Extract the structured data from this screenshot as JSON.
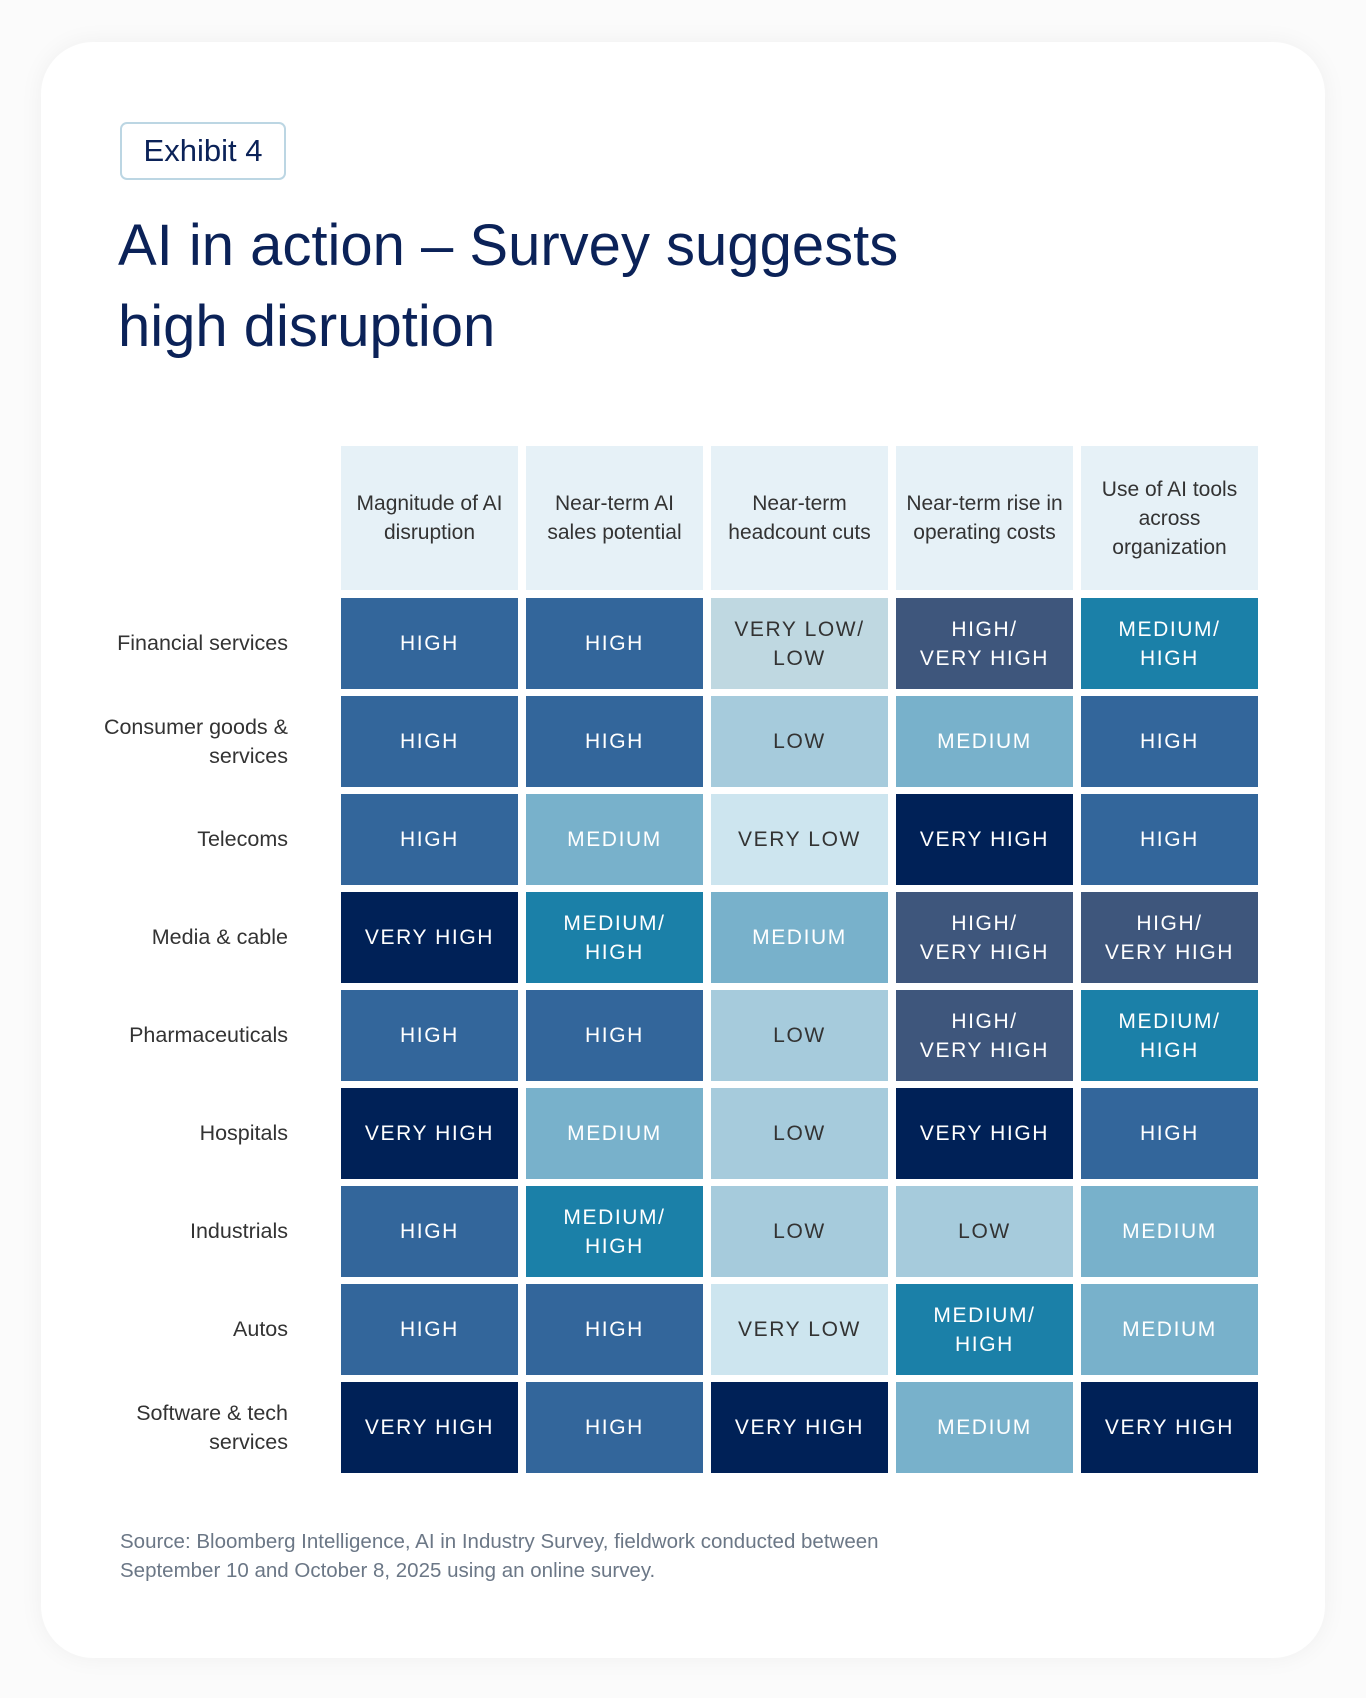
{
  "exhibit_label": "Exhibit 4",
  "title": "AI in action – Survey suggests high disruption",
  "source": "Source: Bloomberg Intelligence, AI in Industry Survey, fieldwork conducted between September 10 and October 8, 2025 using an online survey.",
  "chart_data": {
    "type": "heatmap",
    "columns": [
      "Magnitude of AI disruption",
      "Near-term AI sales potential",
      "Near-term headcount cuts",
      "Near-term rise in operating costs",
      "Use of AI tools across organization"
    ],
    "rows": [
      "Financial services",
      "Consumer goods & services",
      "Telecoms",
      "Media & cable",
      "Pharmaceuticals",
      "Hospitals",
      "Industrials",
      "Autos",
      "Software & tech services"
    ],
    "values": [
      [
        "HIGH",
        "HIGH",
        "VERY LOW/ LOW",
        "HIGH/ VERY HIGH",
        "MEDIUM/ HIGH"
      ],
      [
        "HIGH",
        "HIGH",
        "LOW",
        "MEDIUM",
        "HIGH"
      ],
      [
        "HIGH",
        "MEDIUM",
        "VERY LOW",
        "VERY HIGH",
        "HIGH"
      ],
      [
        "VERY HIGH",
        "MEDIUM/ HIGH",
        "MEDIUM",
        "HIGH/ VERY HIGH",
        "HIGH/ VERY HIGH"
      ],
      [
        "HIGH",
        "HIGH",
        "LOW",
        "HIGH/ VERY HIGH",
        "MEDIUM/ HIGH"
      ],
      [
        "VERY HIGH",
        "MEDIUM",
        "LOW",
        "VERY HIGH",
        "HIGH"
      ],
      [
        "HIGH",
        "MEDIUM/ HIGH",
        "LOW",
        "LOW",
        "MEDIUM"
      ],
      [
        "HIGH",
        "HIGH",
        "VERY LOW",
        "MEDIUM/ HIGH",
        "MEDIUM"
      ],
      [
        "VERY HIGH",
        "HIGH",
        "VERY HIGH",
        "MEDIUM",
        "VERY HIGH"
      ]
    ],
    "level_colors": {
      "VERY LOW": "#cde5ef",
      "VERY LOW/ LOW": "#bfd8e1",
      "LOW": "#a6cbdc",
      "MEDIUM": "#78b1cb",
      "MEDIUM/ HIGH": "#1b80a8",
      "HIGH": "#33669b",
      "HIGH/ VERY HIGH": "#3e567c",
      "VERY HIGH": "#002157"
    },
    "header_color": "#e6f1f7"
  }
}
